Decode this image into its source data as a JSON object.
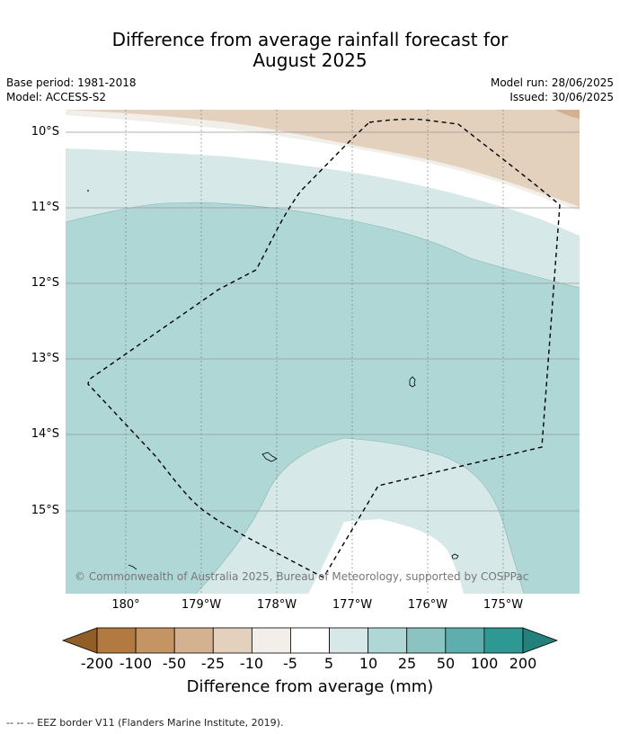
{
  "title": {
    "line1": "Difference from average rainfall forecast for",
    "line2": "August 2025"
  },
  "meta": {
    "base_period": "Base period: 1981-2018",
    "model": "Model: ACCESS-S2",
    "model_run": "Model run: 28/06/2025",
    "issued": "Issued: 30/06/2025"
  },
  "map": {
    "lat_labels": [
      "10°S",
      "11°S",
      "12°S",
      "13°S",
      "14°S",
      "15°S"
    ],
    "lon_labels": [
      "180°",
      "179°W",
      "178°W",
      "177°W",
      "176°W",
      "175°W"
    ],
    "copyright": "© Commonwealth of Australia 2025, Bureau of Meteorology, supported by COSPPac"
  },
  "colorbar": {
    "labels": [
      "-200",
      "-100",
      "-50",
      "-25",
      "-10",
      "-5",
      "5",
      "10",
      "25",
      "50",
      "100",
      "200"
    ],
    "colors": [
      "#915e28",
      "#b27940",
      "#c49463",
      "#d4b18f",
      "#e3d0bd",
      "#f2eee9",
      "#ffffff",
      "#d6e9e8",
      "#afd7d6",
      "#8ac3c2",
      "#5eaeae",
      "#2e9993",
      "#24807b"
    ],
    "title": "Difference from average (mm)"
  },
  "footnote": "--  --  -- EEZ border V11 (Flanders Marine Institute, 2019)."
}
